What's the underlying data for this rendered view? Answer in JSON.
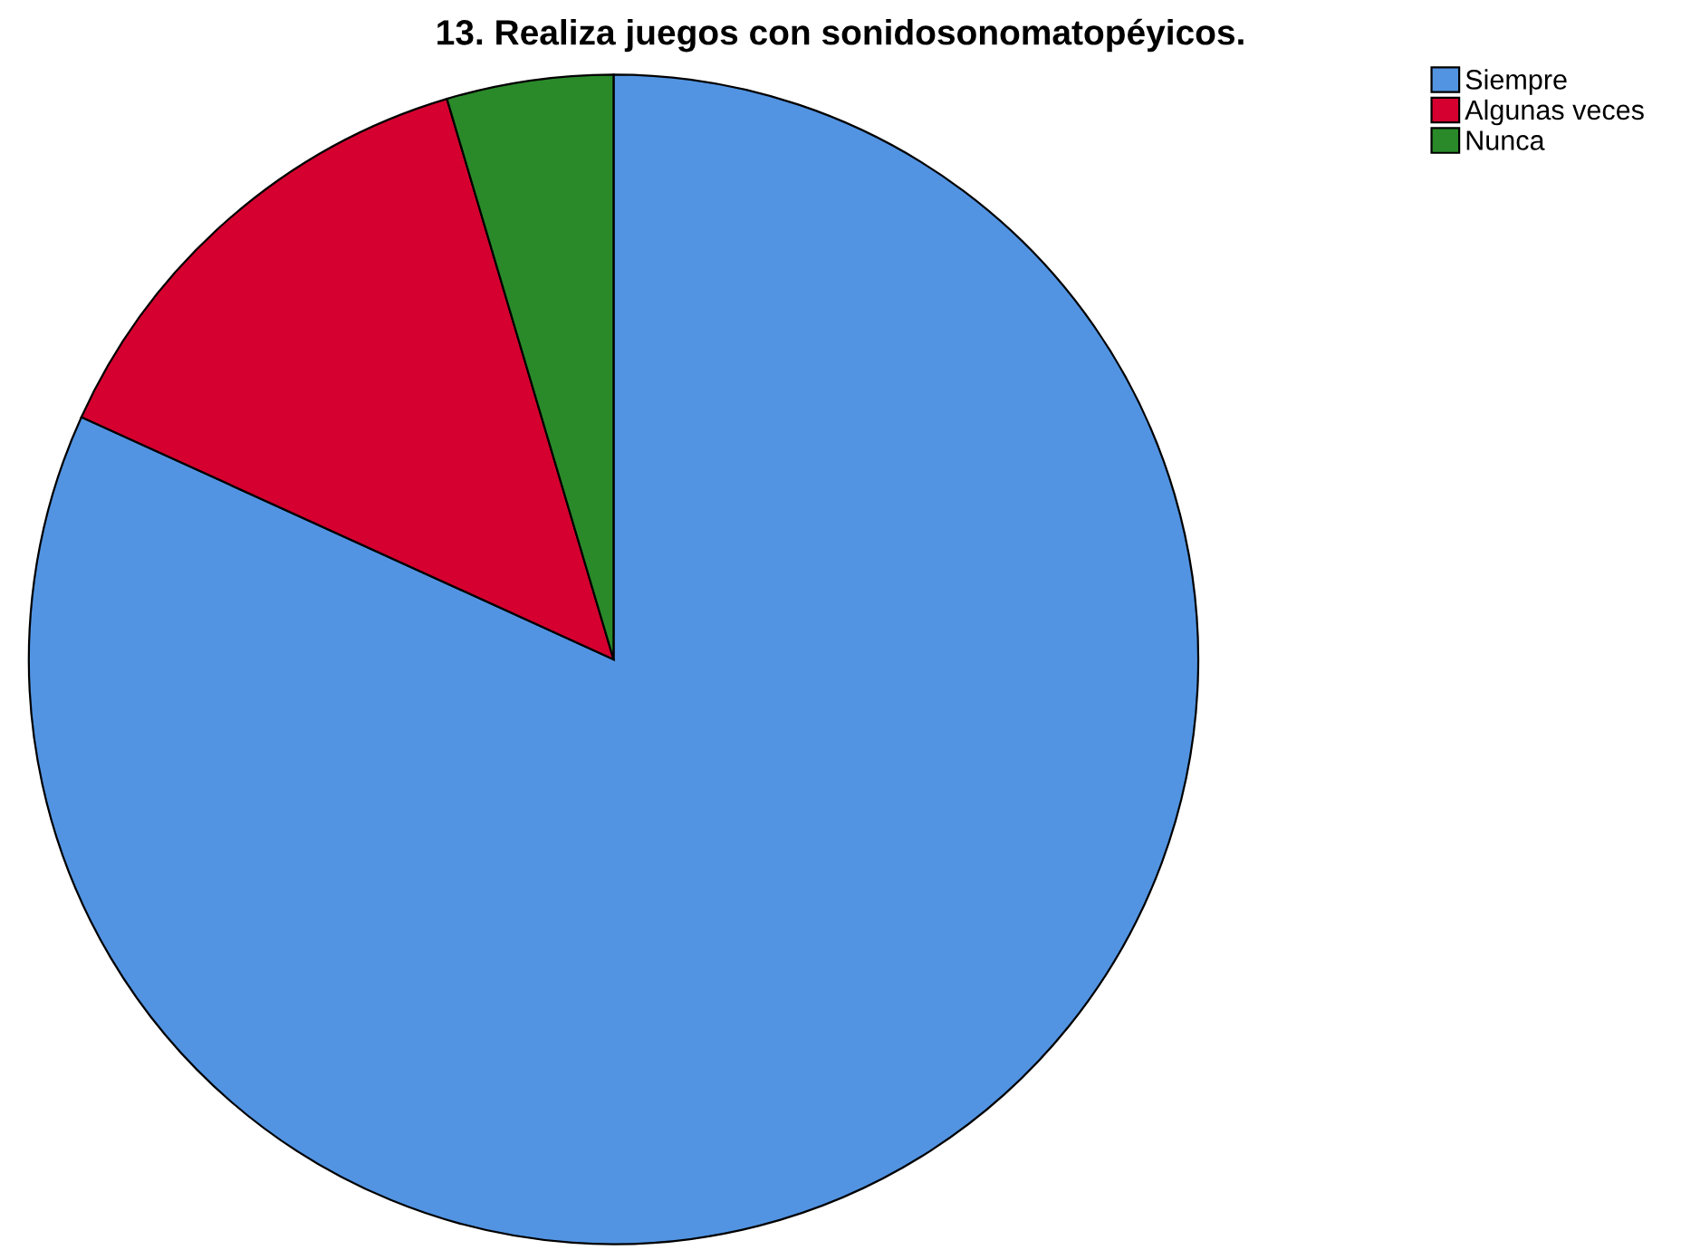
{
  "chart_data": {
    "type": "pie",
    "title": "13. Realiza juegos con sonidosonomatopéyicos.",
    "categories": [
      "Siempre",
      "Algunas veces",
      "Nunca"
    ],
    "values": [
      81.8,
      13.6,
      4.6
    ],
    "colors": [
      "#5294e2",
      "#d5002f",
      "#2a8a2a"
    ],
    "legend": "top right"
  }
}
